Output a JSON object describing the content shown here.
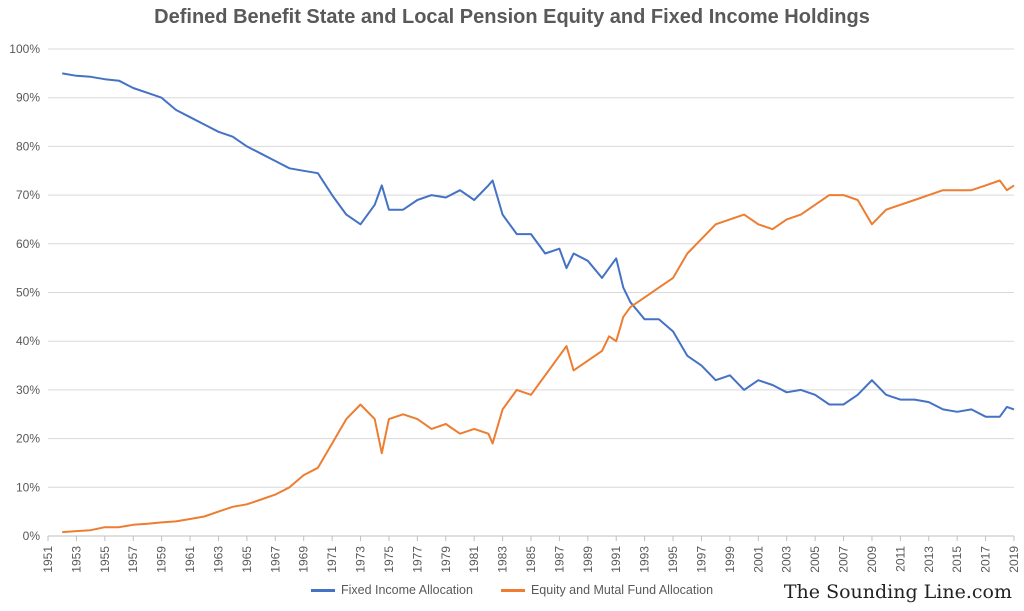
{
  "chart_data": {
    "type": "line",
    "title": "Defined Benefit State and Local Pension Equity and Fixed Income Holdings",
    "xlabel": "",
    "ylabel": "",
    "xlim": [
      1951,
      2019
    ],
    "ylim": [
      0,
      100
    ],
    "y_ticks": [
      "0%",
      "10%",
      "20%",
      "30%",
      "40%",
      "50%",
      "60%",
      "70%",
      "80%",
      "90%",
      "100%"
    ],
    "x_ticks": [
      "1951",
      "1953",
      "1955",
      "1957",
      "1959",
      "1961",
      "1963",
      "1965",
      "1967",
      "1969",
      "1971",
      "1973",
      "1975",
      "1977",
      "1979",
      "1981",
      "1983",
      "1985",
      "1987",
      "1989",
      "1991",
      "1993",
      "1995",
      "1997",
      "1999",
      "2001",
      "2003",
      "2005",
      "2007",
      "2009",
      "2011",
      "2013",
      "2015",
      "2017",
      "2019"
    ],
    "grid": "horizontal",
    "legend_position": "bottom",
    "series": [
      {
        "name": "Fixed Income Allocation",
        "color": "#4472C4",
        "x": [
          1952,
          1953,
          1954,
          1955,
          1956,
          1957,
          1958,
          1959,
          1960,
          1961,
          1962,
          1963,
          1964,
          1965,
          1966,
          1967,
          1968,
          1969,
          1970,
          1971,
          1972,
          1973,
          1974,
          1974.5,
          1975,
          1976,
          1977,
          1978,
          1979,
          1980,
          1981,
          1982,
          1982.3,
          1983,
          1984,
          1985,
          1986,
          1987,
          1987.5,
          1988,
          1989,
          1990,
          1990.5,
          1991,
          1991.5,
          1992,
          1993,
          1994,
          1995,
          1996,
          1997,
          1998,
          1999,
          2000,
          2001,
          2002,
          2003,
          2004,
          2005,
          2006,
          2007,
          2008,
          2009,
          2010,
          2011,
          2012,
          2013,
          2014,
          2015,
          2016,
          2017,
          2018,
          2018.5,
          2019
        ],
        "y": [
          95,
          94.5,
          94.3,
          93.8,
          93.5,
          92,
          91,
          90,
          87.5,
          86,
          84.5,
          83,
          82,
          80,
          78.5,
          77,
          75.5,
          75,
          74.5,
          70,
          66,
          64,
          68,
          72,
          67,
          67,
          69,
          70,
          69.5,
          71,
          69,
          72,
          73,
          66,
          62,
          62,
          58,
          59,
          55,
          58,
          56.5,
          53,
          55,
          57,
          51,
          48,
          44.5,
          44.5,
          42,
          37,
          35,
          32,
          33,
          30,
          32,
          31,
          29.5,
          30,
          29,
          27,
          27,
          29,
          32,
          29,
          28,
          28,
          27.5,
          26,
          25.5,
          26,
          24.5,
          24.5,
          26.5,
          26
        ]
      },
      {
        "name": "Equity and Mutal Fund Allocation",
        "color": "#ED7D31",
        "x": [
          1952,
          1953,
          1954,
          1955,
          1956,
          1957,
          1958,
          1959,
          1960,
          1961,
          1962,
          1963,
          1964,
          1965,
          1966,
          1967,
          1968,
          1969,
          1970,
          1971,
          1972,
          1973,
          1974,
          1974.5,
          1975,
          1976,
          1977,
          1978,
          1979,
          1980,
          1981,
          1982,
          1982.3,
          1983,
          1984,
          1985,
          1986,
          1987,
          1987.5,
          1988,
          1989,
          1990,
          1990.5,
          1991,
          1991.5,
          1992,
          1993,
          1994,
          1995,
          1996,
          1997,
          1998,
          1999,
          2000,
          2001,
          2002,
          2003,
          2004,
          2005,
          2006,
          2007,
          2008,
          2009,
          2010,
          2011,
          2012,
          2013,
          2014,
          2015,
          2016,
          2017,
          2018,
          2018.5,
          2019
        ],
        "y": [
          0.8,
          1,
          1.2,
          1.8,
          1.8,
          2.3,
          2.5,
          2.8,
          3,
          3.5,
          4,
          5,
          6,
          6.5,
          7.5,
          8.5,
          10,
          12.5,
          14,
          19,
          24,
          27,
          24,
          17,
          24,
          25,
          24,
          22,
          23,
          21,
          22,
          21,
          19,
          26,
          30,
          29,
          33,
          37,
          39,
          34,
          36,
          38,
          41,
          40,
          45,
          47,
          49,
          51,
          53,
          58,
          61,
          64,
          65,
          66,
          64,
          63,
          65,
          66,
          68,
          70,
          70,
          69,
          64,
          67,
          68,
          69,
          70,
          71,
          71,
          71,
          72,
          73,
          71,
          72
        ]
      }
    ]
  },
  "watermark": "The Sounding Line.com"
}
